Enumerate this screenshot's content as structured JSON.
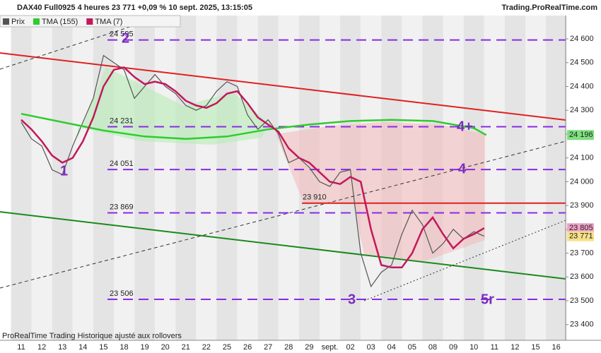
{
  "chart_data": {
    "type": "line",
    "title": "DAX40 Full0925 4 heures 23 771 +0,09 % 10 sept. 2025, 13:15:05",
    "source": "Trading.ProRealTime.com",
    "footer": "ProRealTime Trading  Historique ajusté aux rollovers",
    "categories": [
      "11",
      "12",
      "13",
      "14",
      "15",
      "18",
      "19",
      "20",
      "21",
      "22",
      "25",
      "26",
      "27",
      "28",
      "29",
      "sept.",
      "02",
      "03",
      "04",
      "05",
      "08",
      "09",
      "10",
      "11",
      "12",
      "15",
      "16"
    ],
    "ylim": [
      23340,
      24763
    ],
    "yticks": [
      {
        "value": 23400,
        "label": "23 400"
      },
      {
        "value": 23500,
        "label": "23 500"
      },
      {
        "value": 23600,
        "label": "23 600"
      },
      {
        "value": 23700,
        "label": "23 700"
      },
      {
        "value": 23800,
        "label": "23 800"
      },
      {
        "value": 23900,
        "label": "23 900"
      },
      {
        "value": 24000,
        "label": "24 000"
      },
      {
        "value": 24100,
        "label": "24 100"
      },
      {
        "value": 24200,
        "label": "24 200"
      },
      {
        "value": 24300,
        "label": "24 300"
      },
      {
        "value": 24400,
        "label": "24 400"
      },
      {
        "value": 24500,
        "label": "24 500"
      },
      {
        "value": 24600,
        "label": "24 600"
      }
    ],
    "series": [
      {
        "name": "Prix",
        "color": "#555555",
        "x": [
          0,
          0.5,
          1,
          1.5,
          2,
          2.5,
          3,
          3.5,
          4,
          4.5,
          5,
          5.5,
          6,
          6.5,
          7,
          7.5,
          8,
          8.5,
          9,
          9.5,
          10,
          10.5,
          11,
          11.5,
          12,
          12.5,
          13,
          13.5,
          14,
          14.5,
          15,
          15.5,
          16,
          16.5,
          17,
          17.5,
          18,
          18.5,
          19,
          19.5,
          20,
          20.5,
          21,
          21.5,
          22,
          22.5
        ],
        "values": [
          24250,
          24180,
          24150,
          24050,
          24030,
          24150,
          24250,
          24350,
          24530,
          24500,
          24470,
          24350,
          24400,
          24450,
          24400,
          24370,
          24320,
          24300,
          24320,
          24380,
          24420,
          24400,
          24280,
          24220,
          24260,
          24200,
          24080,
          24100,
          24060,
          24000,
          23980,
          24040,
          24050,
          23700,
          23560,
          23620,
          23650,
          23780,
          23880,
          23820,
          23700,
          23740,
          23800,
          23760,
          23790,
          23771
        ]
      },
      {
        "name": "TMA (155)",
        "color": "#2ecc2e",
        "x": [
          0,
          2,
          4,
          6,
          8,
          10,
          12,
          14,
          16,
          18,
          20,
          22,
          22.6
        ],
        "values": [
          24285,
          24250,
          24215,
          24190,
          24180,
          24190,
          24220,
          24240,
          24255,
          24260,
          24255,
          24225,
          24196
        ]
      },
      {
        "name": "TMA (7)",
        "color": "#c2185b",
        "x": [
          0,
          0.5,
          1,
          1.5,
          2,
          2.5,
          3,
          3.5,
          4,
          4.5,
          5,
          5.5,
          6,
          6.5,
          7,
          7.5,
          8,
          8.5,
          9,
          9.5,
          10,
          10.5,
          11,
          11.5,
          12,
          12.5,
          13,
          13.5,
          14,
          14.5,
          15,
          15.5,
          16,
          16.5,
          17,
          17.5,
          18,
          18.5,
          19,
          19.5,
          20,
          20.5,
          21,
          21.5,
          22,
          22.5
        ],
        "values": [
          24260,
          24220,
          24170,
          24110,
          24080,
          24100,
          24170,
          24270,
          24400,
          24470,
          24480,
          24440,
          24410,
          24420,
          24410,
          24380,
          24340,
          24320,
          24310,
          24330,
          24370,
          24380,
          24330,
          24270,
          24240,
          24210,
          24140,
          24100,
          24080,
          24040,
          24000,
          23990,
          24020,
          24000,
          23800,
          23650,
          23640,
          23640,
          23700,
          23800,
          23850,
          23780,
          23720,
          23760,
          23780,
          23805
        ]
      }
    ],
    "levels": [
      {
        "value": 24595,
        "label": "24 595"
      },
      {
        "value": 24231,
        "label": "24 231"
      },
      {
        "value": 24051,
        "label": "24 051"
      },
      {
        "value": 23869,
        "label": "23 869"
      },
      {
        "value": 23506,
        "label": "23 506"
      }
    ],
    "resistance": {
      "value": 23910,
      "label": "23 910",
      "color": "#e02020"
    },
    "price_tags": [
      {
        "value": 24196,
        "label": "24 196",
        "color": "#7ee07e"
      },
      {
        "value": 23805,
        "label": "23 805",
        "color": "#f0a0c8"
      },
      {
        "value": 23771,
        "label": "23 771",
        "color": "#f5e08a"
      }
    ],
    "annotations": [
      "1",
      "2",
      "3",
      "4",
      "4+",
      "5r"
    ]
  }
}
